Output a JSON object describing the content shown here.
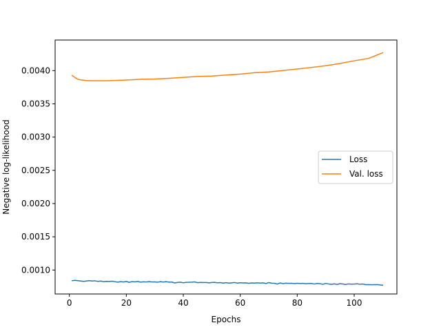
{
  "chart_data": {
    "type": "line",
    "xlabel": "Epochs",
    "ylabel": "Negative log-likelihood",
    "xlim": [
      -5,
      115
    ],
    "ylim": [
      0.00064,
      0.00446
    ],
    "xticks": [
      0,
      20,
      40,
      60,
      80,
      100
    ],
    "yticks": [
      0.001,
      0.0015,
      0.002,
      0.0025,
      0.003,
      0.0035,
      0.004
    ],
    "ytick_labels": [
      "0.0010",
      "0.0015",
      "0.0020",
      "0.0025",
      "0.0030",
      "0.0035",
      "0.0040"
    ],
    "grid": false,
    "legend_position": "right",
    "series": [
      {
        "name": "Loss",
        "color": "#1f77b4",
        "x": [
          1,
          2,
          3,
          4,
          5,
          6,
          7,
          8,
          9,
          10,
          11,
          12,
          13,
          14,
          15,
          16,
          17,
          18,
          19,
          20,
          21,
          22,
          23,
          24,
          25,
          26,
          27,
          28,
          29,
          30,
          31,
          32,
          33,
          34,
          35,
          36,
          37,
          38,
          39,
          40,
          41,
          42,
          43,
          44,
          45,
          46,
          47,
          48,
          49,
          50,
          51,
          52,
          53,
          54,
          55,
          56,
          57,
          58,
          59,
          60,
          61,
          62,
          63,
          64,
          65,
          66,
          67,
          68,
          69,
          70,
          71,
          72,
          73,
          74,
          75,
          76,
          77,
          78,
          79,
          80,
          81,
          82,
          83,
          84,
          85,
          86,
          87,
          88,
          89,
          90,
          91,
          92,
          93,
          94,
          95,
          96,
          97,
          98,
          99,
          100,
          101,
          102,
          103,
          104,
          105,
          106,
          107,
          108,
          109,
          110
        ],
        "y": [
          0.00084,
          0.000845,
          0.00084,
          0.000835,
          0.00083,
          0.000835,
          0.00084,
          0.000835,
          0.000838,
          0.00083,
          0.000835,
          0.000825,
          0.00083,
          0.000828,
          0.000832,
          0.000825,
          0.000818,
          0.000826,
          0.00082,
          0.000828,
          0.000815,
          0.000826,
          0.000822,
          0.000828,
          0.000818,
          0.000823,
          0.00082,
          0.000825,
          0.00082,
          0.000822,
          0.000817,
          0.000826,
          0.000819,
          0.000825,
          0.000818,
          0.00082,
          0.000806,
          0.000814,
          0.000818,
          0.000808,
          0.000815,
          0.000816,
          0.000818,
          0.000822,
          0.00081,
          0.000814,
          0.000812,
          0.000813,
          0.000808,
          0.000813,
          0.000815,
          0.000808,
          0.000811,
          0.000804,
          0.00081,
          0.000804,
          0.000808,
          0.000812,
          0.000803,
          0.000809,
          0.000806,
          0.000807,
          0.0008,
          0.000806,
          0.000803,
          0.000808,
          0.000804,
          0.000807,
          0.000797,
          0.000811,
          0.000802,
          0.000801,
          0.000789,
          0.000806,
          0.000795,
          0.000802,
          0.0008,
          0.000801,
          0.000796,
          0.000801,
          0.000797,
          0.000799,
          0.000794,
          0.000797,
          0.000798,
          0.00079,
          0.000798,
          0.000795,
          0.000786,
          0.000799,
          0.000791,
          0.000785,
          0.000792,
          0.000784,
          0.000794,
          0.00079,
          0.000783,
          0.000791,
          0.000788,
          0.000789,
          0.000793,
          0.000786,
          0.00079,
          0.00078,
          0.000782,
          0.000779,
          0.00078,
          0.000781,
          0.000776,
          0.000772
        ]
      },
      {
        "name": "Val. loss",
        "color": "#ff7f0e",
        "x": [
          1,
          2,
          3,
          4,
          5,
          6,
          8,
          10,
          12,
          15,
          20,
          25,
          30,
          35,
          40,
          45,
          50,
          55,
          60,
          65,
          70,
          75,
          80,
          85,
          90,
          95,
          100,
          105,
          110
        ],
        "y": [
          0.003925,
          0.003895,
          0.00387,
          0.00386,
          0.003855,
          0.00385,
          0.003848,
          0.003847,
          0.003848,
          0.00385,
          0.003858,
          0.00387,
          0.003873,
          0.003884,
          0.003898,
          0.003912,
          0.003918,
          0.003933,
          0.003948,
          0.003968,
          0.00398,
          0.004002,
          0.004024,
          0.004048,
          0.004073,
          0.004107,
          0.004148,
          0.004183,
          0.004268
        ]
      }
    ]
  }
}
